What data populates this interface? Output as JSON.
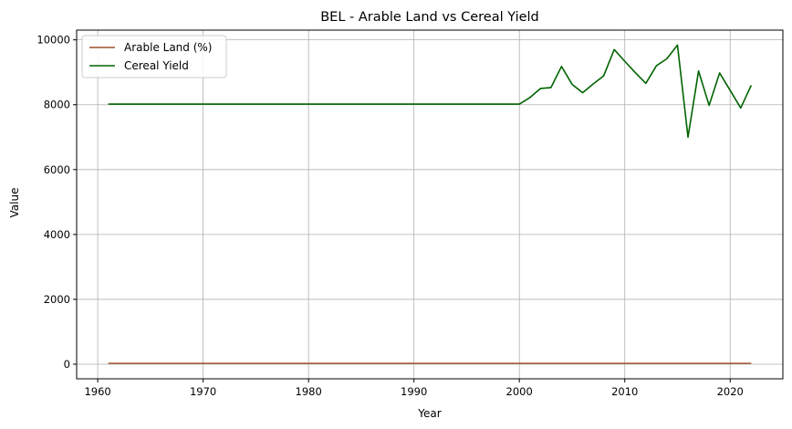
{
  "chart_data": {
    "type": "line",
    "title": "BEL - Arable Land vs Cereal Yield",
    "xlabel": "Year",
    "ylabel": "Value",
    "xlim": [
      1958,
      2025
    ],
    "ylim": [
      -450,
      10300
    ],
    "xticks": [
      1960,
      1970,
      1980,
      1990,
      2000,
      2010,
      2020
    ],
    "yticks": [
      0,
      2000,
      4000,
      6000,
      8000,
      10000
    ],
    "grid": true,
    "legend_position": "top-left",
    "series": [
      {
        "name": "Arable Land (%)",
        "color": "#a0522d",
        "x": [
          1961,
          1965,
          1970,
          1975,
          1980,
          1985,
          1990,
          1995,
          2000,
          2005,
          2010,
          2015,
          2020,
          2022
        ],
        "y": [
          25,
          25,
          25,
          25,
          25,
          25,
          25,
          25,
          25,
          25,
          25,
          25,
          25,
          25
        ]
      },
      {
        "name": "Cereal Yield",
        "color": "#006400",
        "x": [
          1961,
          1970,
          1980,
          1990,
          2000,
          2001,
          2002,
          2003,
          2004,
          2005,
          2006,
          2007,
          2008,
          2009,
          2010,
          2011,
          2012,
          2013,
          2014,
          2015,
          2016,
          2017,
          2018,
          2019,
          2020,
          2021,
          2022
        ],
        "y": [
          8020,
          8020,
          8020,
          8020,
          8020,
          8220,
          8500,
          8530,
          9180,
          8630,
          8370,
          8640,
          8890,
          9700,
          9340,
          8990,
          8660,
          9200,
          9420,
          9840,
          7000,
          9040,
          7980,
          8980,
          8440,
          7900,
          8600
        ]
      }
    ]
  }
}
